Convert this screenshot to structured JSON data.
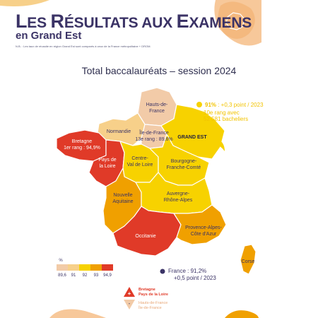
{
  "header": {
    "title_l": "L",
    "title_rest1": "ES ",
    "title_r": "R",
    "title_rest2": "ÉSULTATS AUX ",
    "title_e": "E",
    "title_rest3": "XAMENS",
    "subtitle": "en Grand Est",
    "note": "N.B. : Les taux de réussite en région Grand Est sont comparés à ceux de la France métropolitaine + DROM."
  },
  "map": {
    "title": "Total baccalauréats – session 2024",
    "regions": [
      {
        "id": "hdf",
        "name": "Hauts-de-\nFrance",
        "value": 89.6,
        "color": "#f2cba8"
      },
      {
        "id": "nor",
        "name": "Normandie",
        "value": 91,
        "color": "#f7d08a"
      },
      {
        "id": "idf",
        "name": "Île-de-France",
        "value": 89.6,
        "color": "#f2cba8"
      },
      {
        "id": "ge",
        "name": "GRAND EST",
        "value": 91,
        "color": "#f7d200"
      },
      {
        "id": "bre",
        "name": "Bretagne",
        "value": 94.9,
        "color": "#e03a28"
      },
      {
        "id": "pdl",
        "name": "Pays de\nla Loire",
        "value": 94.9,
        "color": "#e03a28"
      },
      {
        "id": "cvl",
        "name": "Centre-\nVal de Loire",
        "value": 92,
        "color": "#f7d200"
      },
      {
        "id": "bfc",
        "name": "Bourgogne-\nFranche-Comté",
        "value": 92,
        "color": "#f7d200"
      },
      {
        "id": "na",
        "name": "Nouvelle\nAquitaine",
        "value": 93,
        "color": "#f0a000"
      },
      {
        "id": "ara",
        "name": "Auvergne-\nRhône-Alpes",
        "value": 92,
        "color": "#f7d200"
      },
      {
        "id": "occ",
        "name": "Occitanie",
        "value": 94.9,
        "color": "#e03a28"
      },
      {
        "id": "paca",
        "name": "Provence-Alpes-\nCôte d'Azur",
        "value": 93,
        "color": "#f0a000"
      },
      {
        "id": "cor",
        "name": "Corse",
        "value": 93,
        "color": "#f0a000"
      }
    ],
    "annotations": {
      "idf_rank": "Île-de-France\n13e rang : 89,6%",
      "bre_rank": "Bretagne\n1er rang : 94,9%",
      "ge_value": "91%",
      "ge_delta": " : +0,3 point / 2023",
      "ge_rank1": "10e rang avec",
      "ge_rank2": "52 581 bacheliers",
      "france1": "France : 91,2%",
      "france2": "+0,5 point / 2023"
    },
    "legend": {
      "unit": "%",
      "ticks": [
        "89,6",
        "91",
        "92",
        "93",
        "94,9"
      ],
      "colors": [
        "#f2cba8",
        "#f7d08a",
        "#f7d200",
        "#f0a000",
        "#e03a28"
      ]
    },
    "extremes": {
      "best": [
        "Bretagne",
        "Pays de la Loire"
      ],
      "worst": [
        "Hauts-de-France",
        "Île-de-France"
      ]
    }
  }
}
